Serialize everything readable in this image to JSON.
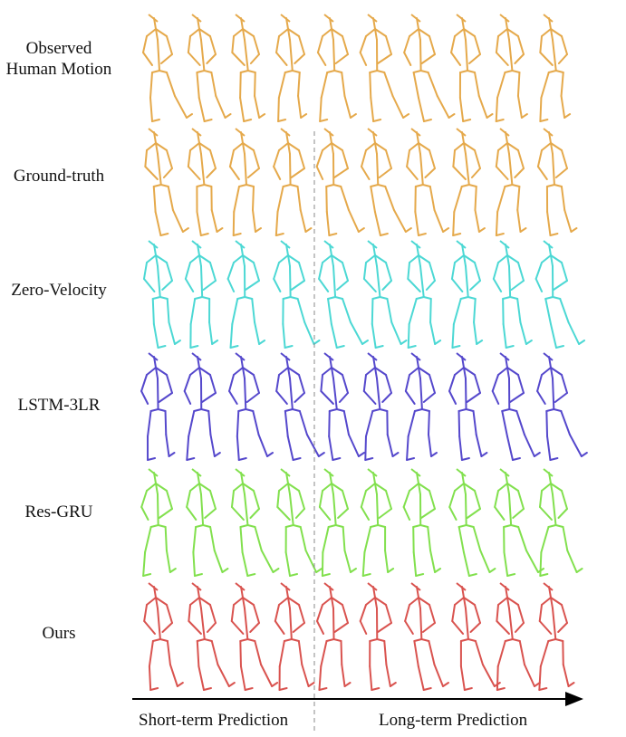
{
  "rows": [
    {
      "label_line1": "Observed",
      "label_line2": "Human Motion",
      "color": "#E5A94B"
    },
    {
      "label_line1": "Ground-truth",
      "color": "#E5A94B"
    },
    {
      "label_line1": "Zero-Velocity",
      "color": "#4CD8D4"
    },
    {
      "label_line1": "LSTM-3LR",
      "color": "#5548CC"
    },
    {
      "label_line1": "Res-GRU",
      "color": "#82E04E"
    },
    {
      "label_line1": "Ours",
      "color": "#D9534F"
    }
  ],
  "frames_per_row": 10,
  "axis": {
    "short_label": "Short-term Prediction",
    "long_label": "Long-term Prediction"
  }
}
